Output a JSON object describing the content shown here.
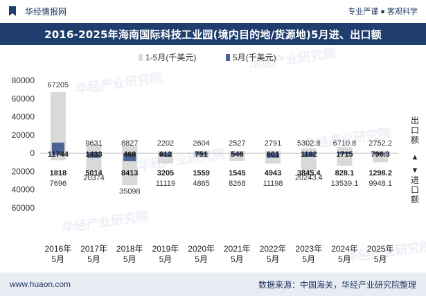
{
  "header": {
    "brand": "华经情报网",
    "tagline": "专业严谨 ● 客观科学"
  },
  "title": "2016-2025年海南国际科技工业园(境内目的地/货源地)5月进、出口额",
  "footer": {
    "website": "www.huaon.com",
    "source": "数据来源：中国海关，华经产业研究院整理"
  },
  "watermark": "华经产业研究院",
  "side_labels": {
    "export_label": "出口额",
    "import_label": "进口额",
    "up_arrow": "▲",
    "down_arrow": "▼"
  },
  "colors": {
    "cumulative": "#d9d9d9",
    "monthly": "#4a6394",
    "title_bg": "#1f3e6e"
  },
  "chart_data": {
    "type": "bar",
    "categories": [
      "2016年\n5月",
      "2017年\n5月",
      "2018年\n5月",
      "2019年\n5月",
      "2020年\n5月",
      "2021年\n5月",
      "2022年\n5月",
      "2023年\n5月",
      "2024年\n5月",
      "2025年\n5月"
    ],
    "ylim": [
      -60000,
      80000
    ],
    "yticks": [
      80000,
      60000,
      40000,
      20000,
      0,
      -20000,
      -40000,
      -60000
    ],
    "ytick_labels": [
      "80000",
      "60000",
      "40000",
      "20000",
      "0",
      "20000",
      "40000",
      "60000"
    ],
    "unit": "千美元",
    "legend_position": "top",
    "series": [
      {
        "name": "1-5月(千美元)",
        "export": [
          67205,
          9631,
          8827,
          2202,
          2604,
          2527,
          2791,
          5302.8,
          6710.8,
          2752.2
        ],
        "import": [
          7696,
          20374,
          35098,
          11119,
          4865,
          8268,
          11198,
          20243.4,
          13539.1,
          9948.1
        ],
        "export_labels": [
          "67205",
          "9631",
          "8827",
          "2202",
          "2604",
          "2527",
          "2791",
          "5302.8",
          "6710.8",
          "2752.2"
        ],
        "import_labels": [
          "7696",
          "20374",
          "35098",
          "11119",
          "4865",
          "8268",
          "11198",
          "20243.4",
          "13539.1",
          "9948.1"
        ]
      },
      {
        "name": "5月(千美元)",
        "export": [
          11744,
          1433,
          468,
          612,
          751,
          546,
          601,
          1192,
          1715,
          796.3
        ],
        "import": [
          1818,
          5014,
          8413,
          3205,
          1559,
          1545,
          4943,
          3845.4,
          828.1,
          1298.2
        ],
        "export_labels": [
          "11744",
          "1433",
          "468",
          "612",
          "751",
          "546",
          "601",
          "1192",
          "1715",
          "796.3"
        ],
        "import_labels": [
          "1818",
          "5014",
          "8413",
          "3205",
          "1559",
          "1545",
          "4943",
          "3845.4",
          "828.1",
          "1298.2"
        ]
      }
    ]
  }
}
